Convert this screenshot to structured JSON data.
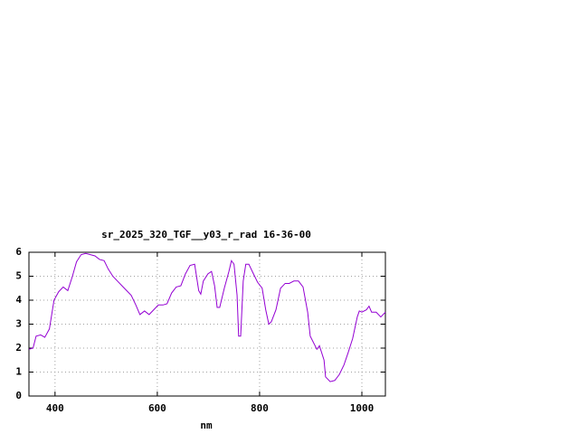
{
  "chart_data": {
    "type": "line",
    "title": "sr_2025_320_TGF__y03_r_rad 16-36-00",
    "x_label": "nm",
    "xlim": [
      349,
      1046
    ],
    "xticks": [
      400,
      600,
      800,
      1000
    ],
    "ylim": [
      0,
      6
    ],
    "yticks": [
      0,
      1,
      2,
      3,
      4,
      5,
      6
    ],
    "grid": true,
    "series": [
      {
        "color": "#9400d3",
        "x": [
          349,
          357,
          363,
          372,
          380,
          389,
          398,
          407,
          416,
          425,
          434,
          442,
          451,
          460,
          469,
          478,
          487,
          496,
          504,
          513,
          522,
          531,
          540,
          549,
          558,
          566,
          575,
          584,
          593,
          602,
          611,
          619,
          628,
          637,
          646,
          655,
          664,
          673,
          681,
          685,
          690,
          699,
          706,
          712,
          717,
          722,
          731,
          740,
          745,
          750,
          756,
          759,
          763,
          768,
          773,
          779,
          788,
          796,
          805,
          812,
          818,
          823,
          832,
          841,
          850,
          858,
          867,
          876,
          885,
          894,
          899,
          912,
          917,
          926,
          929,
          938,
          947,
          956,
          965,
          973,
          982,
          991,
          995,
          1000,
          1009,
          1014,
          1019,
          1028,
          1037,
          1046
        ],
        "values": [
          1.95,
          2.0,
          2.5,
          2.55,
          2.45,
          2.8,
          4.0,
          4.35,
          4.55,
          4.4,
          5.0,
          5.6,
          5.9,
          5.95,
          5.9,
          5.85,
          5.7,
          5.65,
          5.3,
          5.0,
          4.8,
          4.6,
          4.4,
          4.2,
          3.8,
          3.4,
          3.55,
          3.4,
          3.6,
          3.8,
          3.8,
          3.85,
          4.3,
          4.55,
          4.6,
          5.1,
          5.45,
          5.5,
          4.4,
          4.25,
          4.8,
          5.1,
          5.2,
          4.6,
          3.7,
          3.7,
          4.5,
          5.2,
          5.65,
          5.5,
          4.2,
          2.5,
          2.5,
          4.8,
          5.5,
          5.5,
          5.1,
          4.75,
          4.5,
          3.6,
          3.0,
          3.1,
          3.6,
          4.5,
          4.7,
          4.7,
          4.8,
          4.8,
          4.55,
          3.5,
          2.5,
          1.95,
          2.1,
          1.5,
          0.8,
          0.6,
          0.65,
          0.9,
          1.3,
          1.8,
          2.4,
          3.3,
          3.55,
          3.5,
          3.6,
          3.75,
          3.5,
          3.5,
          3.3,
          3.5
        ]
      }
    ]
  }
}
